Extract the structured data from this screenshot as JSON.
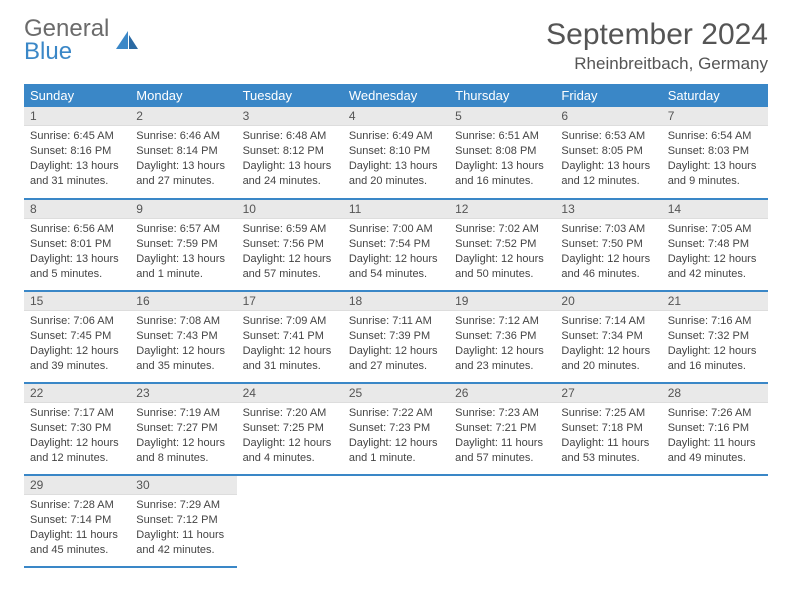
{
  "brand": {
    "name1": "General",
    "name2": "Blue"
  },
  "title": "September 2024",
  "location": "Rheinbreitbach, Germany",
  "day_headers": [
    "Sunday",
    "Monday",
    "Tuesday",
    "Wednesday",
    "Thursday",
    "Friday",
    "Saturday"
  ],
  "colors": {
    "accent": "#3a87c7",
    "header_text": "#ffffff",
    "daynum_bg": "#e9e9e9",
    "text": "#444444"
  },
  "weeks": [
    [
      {
        "n": "1",
        "sunrise": "Sunrise: 6:45 AM",
        "sunset": "Sunset: 8:16 PM",
        "daylight": "Daylight: 13 hours and 31 minutes."
      },
      {
        "n": "2",
        "sunrise": "Sunrise: 6:46 AM",
        "sunset": "Sunset: 8:14 PM",
        "daylight": "Daylight: 13 hours and 27 minutes."
      },
      {
        "n": "3",
        "sunrise": "Sunrise: 6:48 AM",
        "sunset": "Sunset: 8:12 PM",
        "daylight": "Daylight: 13 hours and 24 minutes."
      },
      {
        "n": "4",
        "sunrise": "Sunrise: 6:49 AM",
        "sunset": "Sunset: 8:10 PM",
        "daylight": "Daylight: 13 hours and 20 minutes."
      },
      {
        "n": "5",
        "sunrise": "Sunrise: 6:51 AM",
        "sunset": "Sunset: 8:08 PM",
        "daylight": "Daylight: 13 hours and 16 minutes."
      },
      {
        "n": "6",
        "sunrise": "Sunrise: 6:53 AM",
        "sunset": "Sunset: 8:05 PM",
        "daylight": "Daylight: 13 hours and 12 minutes."
      },
      {
        "n": "7",
        "sunrise": "Sunrise: 6:54 AM",
        "sunset": "Sunset: 8:03 PM",
        "daylight": "Daylight: 13 hours and 9 minutes."
      }
    ],
    [
      {
        "n": "8",
        "sunrise": "Sunrise: 6:56 AM",
        "sunset": "Sunset: 8:01 PM",
        "daylight": "Daylight: 13 hours and 5 minutes."
      },
      {
        "n": "9",
        "sunrise": "Sunrise: 6:57 AM",
        "sunset": "Sunset: 7:59 PM",
        "daylight": "Daylight: 13 hours and 1 minute."
      },
      {
        "n": "10",
        "sunrise": "Sunrise: 6:59 AM",
        "sunset": "Sunset: 7:56 PM",
        "daylight": "Daylight: 12 hours and 57 minutes."
      },
      {
        "n": "11",
        "sunrise": "Sunrise: 7:00 AM",
        "sunset": "Sunset: 7:54 PM",
        "daylight": "Daylight: 12 hours and 54 minutes."
      },
      {
        "n": "12",
        "sunrise": "Sunrise: 7:02 AM",
        "sunset": "Sunset: 7:52 PM",
        "daylight": "Daylight: 12 hours and 50 minutes."
      },
      {
        "n": "13",
        "sunrise": "Sunrise: 7:03 AM",
        "sunset": "Sunset: 7:50 PM",
        "daylight": "Daylight: 12 hours and 46 minutes."
      },
      {
        "n": "14",
        "sunrise": "Sunrise: 7:05 AM",
        "sunset": "Sunset: 7:48 PM",
        "daylight": "Daylight: 12 hours and 42 minutes."
      }
    ],
    [
      {
        "n": "15",
        "sunrise": "Sunrise: 7:06 AM",
        "sunset": "Sunset: 7:45 PM",
        "daylight": "Daylight: 12 hours and 39 minutes."
      },
      {
        "n": "16",
        "sunrise": "Sunrise: 7:08 AM",
        "sunset": "Sunset: 7:43 PM",
        "daylight": "Daylight: 12 hours and 35 minutes."
      },
      {
        "n": "17",
        "sunrise": "Sunrise: 7:09 AM",
        "sunset": "Sunset: 7:41 PM",
        "daylight": "Daylight: 12 hours and 31 minutes."
      },
      {
        "n": "18",
        "sunrise": "Sunrise: 7:11 AM",
        "sunset": "Sunset: 7:39 PM",
        "daylight": "Daylight: 12 hours and 27 minutes."
      },
      {
        "n": "19",
        "sunrise": "Sunrise: 7:12 AM",
        "sunset": "Sunset: 7:36 PM",
        "daylight": "Daylight: 12 hours and 23 minutes."
      },
      {
        "n": "20",
        "sunrise": "Sunrise: 7:14 AM",
        "sunset": "Sunset: 7:34 PM",
        "daylight": "Daylight: 12 hours and 20 minutes."
      },
      {
        "n": "21",
        "sunrise": "Sunrise: 7:16 AM",
        "sunset": "Sunset: 7:32 PM",
        "daylight": "Daylight: 12 hours and 16 minutes."
      }
    ],
    [
      {
        "n": "22",
        "sunrise": "Sunrise: 7:17 AM",
        "sunset": "Sunset: 7:30 PM",
        "daylight": "Daylight: 12 hours and 12 minutes."
      },
      {
        "n": "23",
        "sunrise": "Sunrise: 7:19 AM",
        "sunset": "Sunset: 7:27 PM",
        "daylight": "Daylight: 12 hours and 8 minutes."
      },
      {
        "n": "24",
        "sunrise": "Sunrise: 7:20 AM",
        "sunset": "Sunset: 7:25 PM",
        "daylight": "Daylight: 12 hours and 4 minutes."
      },
      {
        "n": "25",
        "sunrise": "Sunrise: 7:22 AM",
        "sunset": "Sunset: 7:23 PM",
        "daylight": "Daylight: 12 hours and 1 minute."
      },
      {
        "n": "26",
        "sunrise": "Sunrise: 7:23 AM",
        "sunset": "Sunset: 7:21 PM",
        "daylight": "Daylight: 11 hours and 57 minutes."
      },
      {
        "n": "27",
        "sunrise": "Sunrise: 7:25 AM",
        "sunset": "Sunset: 7:18 PM",
        "daylight": "Daylight: 11 hours and 53 minutes."
      },
      {
        "n": "28",
        "sunrise": "Sunrise: 7:26 AM",
        "sunset": "Sunset: 7:16 PM",
        "daylight": "Daylight: 11 hours and 49 minutes."
      }
    ],
    [
      {
        "n": "29",
        "sunrise": "Sunrise: 7:28 AM",
        "sunset": "Sunset: 7:14 PM",
        "daylight": "Daylight: 11 hours and 45 minutes."
      },
      {
        "n": "30",
        "sunrise": "Sunrise: 7:29 AM",
        "sunset": "Sunset: 7:12 PM",
        "daylight": "Daylight: 11 hours and 42 minutes."
      },
      null,
      null,
      null,
      null,
      null
    ]
  ]
}
